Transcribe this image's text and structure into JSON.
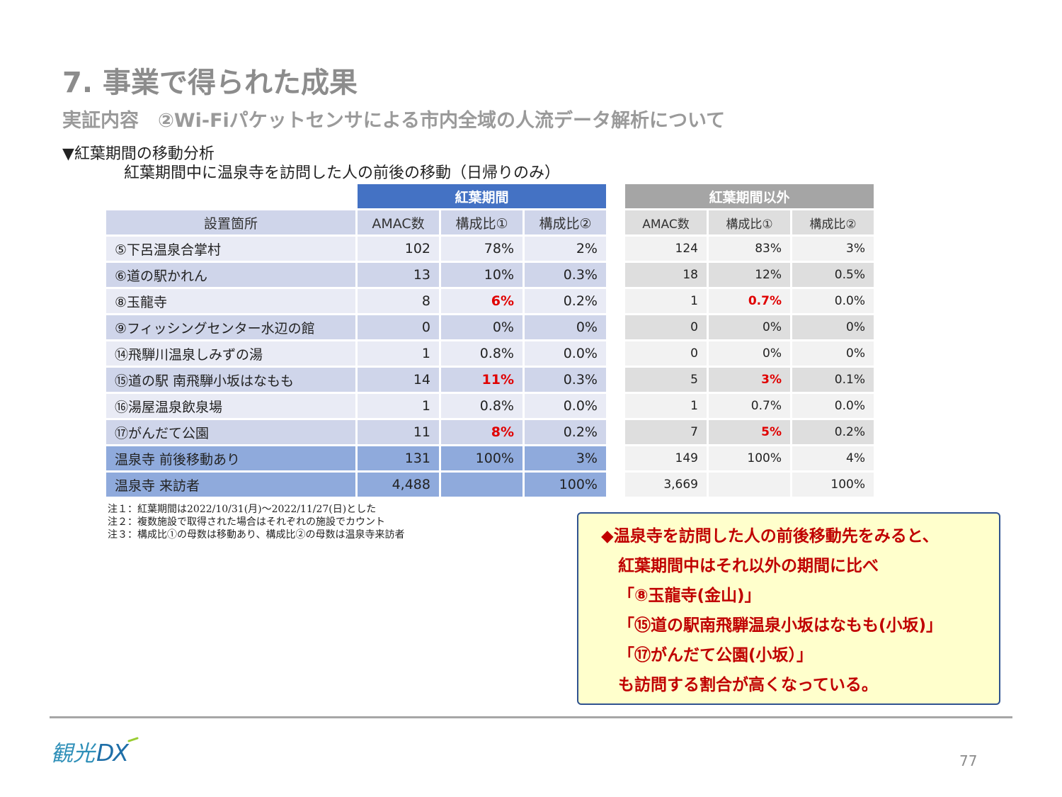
{
  "title": "7. 事業で得られた成果",
  "subtitle": "実証内容　②Wi-Fiパケットセンサによる市内全域の人流データ解析について",
  "section_heading": "▼紅葉期間の移動分析",
  "section_sub": "紅葉期間中に温泉寺を訪問した人の前後の移動（日帰りのみ）",
  "table": {
    "group_autumn": "紅葉期間",
    "group_other": "紅葉期間以外",
    "columns": {
      "location": "設置箇所",
      "amac": "AMAC数",
      "ratio1": "構成比①",
      "ratio2": "構成比②"
    },
    "rows": [
      {
        "location": "⑤下呂温泉合掌村",
        "a_amac": "102",
        "a_r1": "78%",
        "a_r2": "2%",
        "o_amac": "124",
        "o_r1": "83%",
        "o_r2": "3%"
      },
      {
        "location": "⑥道の駅かれん",
        "a_amac": "13",
        "a_r1": "10%",
        "a_r2": "0.3%",
        "o_amac": "18",
        "o_r1": "12%",
        "o_r2": "0.5%"
      },
      {
        "location": "⑧玉龍寺",
        "a_amac": "8",
        "a_r1": "6%",
        "a_r2": "0.2%",
        "o_amac": "1",
        "o_r1": "0.7%",
        "o_r2": "0.0%"
      },
      {
        "location": "⑨フィッシングセンター水辺の館",
        "a_amac": "0",
        "a_r1": "0%",
        "a_r2": "0%",
        "o_amac": "0",
        "o_r1": "0%",
        "o_r2": "0%"
      },
      {
        "location": "⑭飛騨川温泉しみずの湯",
        "a_amac": "1",
        "a_r1": "0.8%",
        "a_r2": "0.0%",
        "o_amac": "0",
        "o_r1": "0%",
        "o_r2": "0%"
      },
      {
        "location": "⑮道の駅 南飛騨小坂はなもも",
        "a_amac": "14",
        "a_r1": "11%",
        "a_r2": "0.3%",
        "o_amac": "5",
        "o_r1": "3%",
        "o_r2": "0.1%"
      },
      {
        "location": "⑯湯屋温泉飲泉場",
        "a_amac": "1",
        "a_r1": "0.8%",
        "a_r2": "0.0%",
        "o_amac": "1",
        "o_r1": "0.7%",
        "o_r2": "0.0%"
      },
      {
        "location": "⑰がんだて公園",
        "a_amac": "11",
        "a_r1": "8%",
        "a_r2": "0.2%",
        "o_amac": "7",
        "o_r1": "5%",
        "o_r2": "0.2%"
      }
    ],
    "sum_rows": [
      {
        "location": "温泉寺 前後移動あり",
        "a_amac": "131",
        "a_r1": "100%",
        "a_r2": "3%",
        "o_amac": "149",
        "o_r1": "100%",
        "o_r2": "4%"
      },
      {
        "location": "温泉寺 来訪者",
        "a_amac": "4,488",
        "a_r1": "",
        "a_r2": "100%",
        "o_amac": "3,669",
        "o_r1": "",
        "o_r2": "100%"
      }
    ]
  },
  "notes": [
    "注１：紅葉期間は2022/10/31(月)～2022/11/27(日)とした",
    "注２：複数施設で取得された場合はそれぞれの施設でカウント",
    "注３：構成比①の母数は移動あり、構成比②の母数は温泉寺来訪者"
  ],
  "callout": {
    "lines": [
      "◆温泉寺を訪問した人の前後移動先をみると、",
      "紅葉期間中はそれ以外の期間に比べ",
      "「⑧玉龍寺(金山)」",
      "「⑮道の駅南飛騨温泉小坂はなもも(小坂)」",
      "「⑰がんだて公園(小坂）」",
      "も訪問する割合が高くなっている。"
    ]
  },
  "colors": {
    "header_blue": "#4472c4",
    "header_gray": "#a5a5a5",
    "highlight_red": "#e00000",
    "callout_text": "#c00000",
    "callout_bg": "#ffffcc"
  },
  "footer": {
    "logo_text": "観光DX",
    "page_number": "77"
  }
}
